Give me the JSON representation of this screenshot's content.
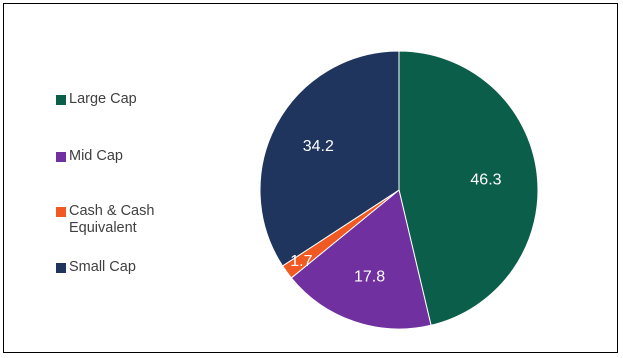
{
  "chart_data": {
    "type": "pie",
    "title": "",
    "legend_position": "left",
    "slices": [
      {
        "label": "Large Cap",
        "value": 46.3,
        "display": "46.3",
        "color": "#0B5E4A"
      },
      {
        "label": "Mid Cap",
        "value": 17.8,
        "display": "17.8",
        "color": "#7030A0"
      },
      {
        "label": "Cash & Cash Equivalent",
        "value": 1.7,
        "display": "1.7",
        "color": "#F05A22"
      },
      {
        "label": "Small Cap",
        "value": 34.2,
        "display": "34.2",
        "color": "#1F355E"
      }
    ],
    "label_color": "#FFFFFF",
    "start_angle_deg": 0,
    "direction": "clockwise"
  }
}
